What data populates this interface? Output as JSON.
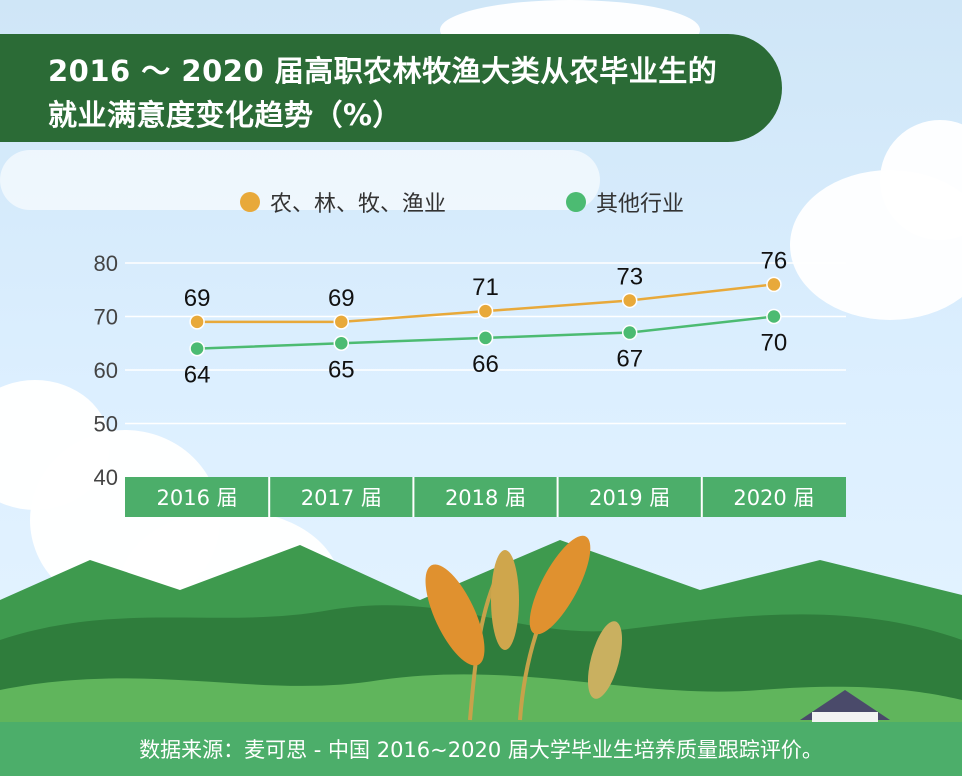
{
  "title_line1": "2016 ～ 2020 届高职农林牧渔大类从农毕业生的",
  "title_line2": "就业满意度变化趋势（%）",
  "legend": [
    {
      "label": "农、林、牧、渔业",
      "color": "#e8a93a"
    },
    {
      "label": "其他行业",
      "color": "#4cbb72"
    }
  ],
  "chart_data": {
    "type": "line",
    "title": "2016 ～ 2020 届高职农林牧渔大类从农毕业生的就业满意度变化趋势（%）",
    "categories": [
      "2016 届",
      "2017 届",
      "2018 届",
      "2019 届",
      "2020 届"
    ],
    "series": [
      {
        "name": "农、林、牧、渔业",
        "values": [
          69,
          69,
          71,
          73,
          76
        ],
        "color": "#e8a93a"
      },
      {
        "name": "其他行业",
        "values": [
          64,
          65,
          66,
          67,
          70
        ],
        "color": "#4cbb72"
      }
    ],
    "ylim": [
      40,
      80
    ],
    "yticks": [
      40,
      50,
      60,
      70,
      80
    ],
    "grid": true,
    "legend_position": "top"
  },
  "footer_text": "数据来源：麦可思 - 中国 2016~2020 届大学毕业生培养质量跟踪评价。"
}
